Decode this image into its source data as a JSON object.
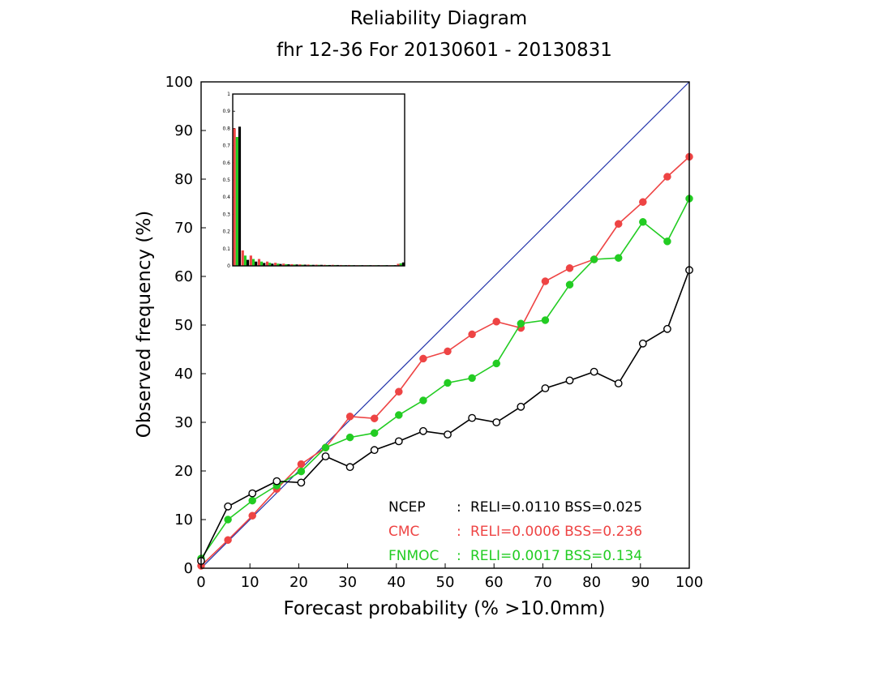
{
  "chart_data": {
    "type": "line",
    "title": "Reliability Diagram",
    "subtitle": "fhr 12-36 For 20130601 - 20130831",
    "xlabel": "Forecast probability (% >10.0mm)",
    "ylabel": "Observed frequency (%)",
    "xlim": [
      0,
      100
    ],
    "ylim": [
      0,
      100
    ],
    "x_ticks": [
      "0",
      "10",
      "20",
      "30",
      "40",
      "50",
      "60",
      "70",
      "80",
      "90",
      "100"
    ],
    "y_ticks": [
      "0",
      "10",
      "20",
      "30",
      "40",
      "50",
      "60",
      "70",
      "80",
      "90",
      "100"
    ],
    "grid": false,
    "colors": {
      "diagonal": "#2233aa",
      "NCEP": "#000000",
      "CMC": "#ee4444",
      "FNMOC": "#22cc22"
    },
    "x": [
      0,
      5.5,
      10.5,
      15.5,
      20.5,
      25.5,
      30.5,
      35.5,
      40.5,
      45.5,
      50.5,
      55.5,
      60.5,
      65.5,
      70.5,
      75.5,
      80.5,
      85.5,
      90.5,
      95.5,
      100
    ],
    "series": [
      {
        "name": "NCEP",
        "marker": "open-circle",
        "values": [
          1.5,
          12.7,
          15.4,
          17.9,
          17.6,
          23.0,
          20.8,
          24.3,
          26.1,
          28.2,
          27.5,
          30.9,
          30.0,
          33.2,
          37.0,
          38.6,
          40.4,
          38.0,
          46.2,
          49.2,
          61.3
        ]
      },
      {
        "name": "CMC",
        "marker": "filled-circle",
        "values": [
          0.5,
          5.8,
          10.8,
          16.3,
          21.4,
          24.8,
          31.2,
          30.8,
          36.3,
          43.1,
          44.6,
          48.1,
          50.7,
          49.4,
          59.0,
          61.7,
          63.5,
          70.8,
          75.3,
          80.5,
          84.6
        ]
      },
      {
        "name": "FNMOC",
        "marker": "filled-circle",
        "values": [
          2.0,
          10.0,
          13.9,
          17.0,
          19.9,
          24.8,
          26.9,
          27.8,
          31.5,
          34.5,
          38.1,
          39.1,
          42.1,
          50.3,
          51.0,
          58.3,
          63.5,
          63.8,
          71.2,
          67.2,
          76.0
        ]
      }
    ],
    "legend": [
      {
        "name": "NCEP",
        "sep": ":",
        "text": "RELI=0.0110  BSS=0.025"
      },
      {
        "name": "CMC",
        "sep": ":",
        "text": "RELI=0.0006  BSS=0.236"
      },
      {
        "name": "FNMOC",
        "sep": ":",
        "text": "RELI=0.0017  BSS=0.134"
      }
    ],
    "legend_placement": "bottom-right",
    "inset": {
      "type": "bar",
      "description_hidden": true,
      "ylim": [
        0,
        1
      ],
      "y_ticks": [
        "0",
        "0.1",
        "0.2",
        "0.3",
        "0.4",
        "0.5",
        "0.6",
        "0.7",
        "0.8",
        "0.9",
        "1"
      ],
      "bins": 21,
      "series": [
        {
          "name": "NCEP",
          "values": [
            0.81,
            0.035,
            0.025,
            0.017,
            0.013,
            0.011,
            0.009,
            0.008,
            0.007,
            0.006,
            0.006,
            0.005,
            0.005,
            0.004,
            0.004,
            0.004,
            0.004,
            0.004,
            0.004,
            0.004,
            0.02
          ]
        },
        {
          "name": "CMC",
          "values": [
            0.8,
            0.09,
            0.06,
            0.04,
            0.025,
            0.018,
            0.013,
            0.01,
            0.009,
            0.008,
            0.007,
            0.006,
            0.006,
            0.005,
            0.005,
            0.004,
            0.004,
            0.004,
            0.004,
            0.004,
            0.012
          ]
        },
        {
          "name": "FNMOC",
          "values": [
            0.75,
            0.06,
            0.04,
            0.025,
            0.018,
            0.013,
            0.01,
            0.008,
            0.007,
            0.006,
            0.006,
            0.005,
            0.005,
            0.004,
            0.004,
            0.004,
            0.004,
            0.004,
            0.004,
            0.004,
            0.015
          ]
        }
      ]
    }
  }
}
